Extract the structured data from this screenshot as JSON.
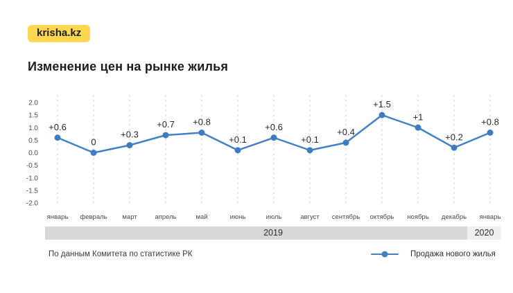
{
  "logo": {
    "text": "krisha.kz",
    "bg_color": "#ffd64f"
  },
  "title": "Изменение цен на рынке жилья",
  "chart_data": {
    "type": "line",
    "title": "Изменение цен на рынке жилья",
    "categories": [
      "январь",
      "февраль",
      "март",
      "апрель",
      "май",
      "июнь",
      "июль",
      "август",
      "сентябрь",
      "октябрь",
      "ноябрь",
      "декабрь",
      "январь"
    ],
    "values": [
      0.6,
      0,
      0.3,
      0.7,
      0.8,
      0.1,
      0.6,
      0.1,
      0.4,
      1.5,
      1,
      0.2,
      0.8
    ],
    "point_labels": [
      "+0.6",
      "0",
      "+0.3",
      "+0.7",
      "+0.8",
      "+0.1",
      "+0.6",
      "+0.1",
      "+0.4",
      "+1.5",
      "+1",
      "+0.2",
      "+0.8"
    ],
    "series": [
      {
        "name": "Продажа нового жилья",
        "values": [
          0.6,
          0,
          0.3,
          0.7,
          0.8,
          0.1,
          0.6,
          0.1,
          0.4,
          1.5,
          1,
          0.2,
          0.8
        ]
      }
    ],
    "y_ticks": [
      "2.0",
      "1.5",
      "1.0",
      "0.5",
      "0.0",
      "-0.5",
      "-1.0",
      "-1.5",
      "-2.0"
    ],
    "ylim": [
      -2.0,
      2.0
    ],
    "grid": "vertical-dashed",
    "line_color": "#4180c4",
    "marker_color": "#3e7cc2",
    "grid_color": "#cfcfcf",
    "x_groups": [
      {
        "label": "2019"
      },
      {
        "label": "2020"
      }
    ],
    "legend_position": "bottom-right"
  },
  "footer": {
    "source": "По данным Комитета по статистике РК",
    "legend_label": "Продажа нового жилья"
  }
}
